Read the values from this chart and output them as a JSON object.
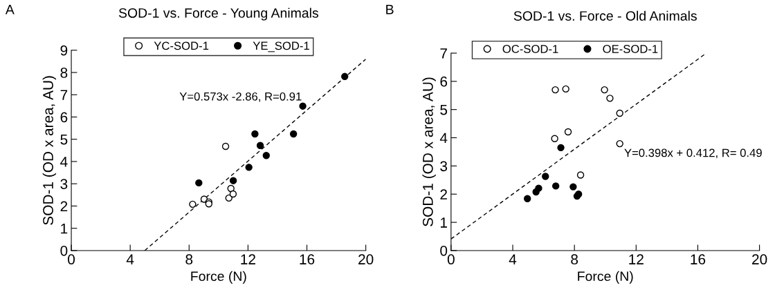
{
  "chart_data": [
    {
      "type": "scatter",
      "title": "SOD-1 vs. Force - Young Animals",
      "xlabel": "Force (N)",
      "ylabel": "SOD-1 (OD x area, AU)",
      "xlim": [
        0,
        20
      ],
      "xticks": [
        0,
        4,
        8,
        12,
        16,
        20
      ],
      "ylim": [
        0,
        9
      ],
      "yticks": [
        0,
        1,
        2,
        3,
        4,
        5,
        6,
        7,
        8,
        9
      ],
      "legend": "top",
      "marker": "circle",
      "grid": false,
      "annotations": [
        "A",
        "Y=0.573x -2.86, R=0.91"
      ],
      "series": [
        {
          "name": "YC-SOD-1",
          "color": "#ffffff",
          "x": [
            8.24,
            9.02,
            9.34,
            9.34,
            10.48,
            10.7,
            10.84,
            10.99
          ],
          "values": [
            2.08,
            2.31,
            2.18,
            2.1,
            4.68,
            2.36,
            2.79,
            2.54
          ]
        },
        {
          "name": "YE_SOD-1",
          "color": "#000000",
          "x": [
            8.66,
            11.0,
            12.06,
            12.47,
            12.83,
            13.24,
            15.09,
            15.72,
            18.57
          ],
          "values": [
            3.04,
            3.14,
            3.74,
            5.24,
            4.72,
            4.27,
            5.24,
            6.49,
            7.82
          ]
        },
        {
          "type": "line",
          "marker": "none",
          "color": "#000000",
          "line_style": "dashed",
          "x": [
            4.99,
            20
          ],
          "values": [
            0,
            8.6
          ]
        }
      ]
    },
    {
      "type": "scatter",
      "title": "SOD-1 vs. Force - Old Animals",
      "xlabel": "Force (N)",
      "ylabel": "SOD-1 (OD x area, AU)",
      "xlim": [
        0,
        20
      ],
      "xticks": [
        0,
        4,
        8,
        12,
        16,
        20
      ],
      "ylim": [
        0,
        7
      ],
      "yticks": [
        0,
        1,
        2,
        3,
        4,
        5,
        6,
        7
      ],
      "legend": "top left",
      "marker": "circle",
      "grid": false,
      "annotations": [
        "B",
        "Y=0.398x + 0.412, R= 0.49"
      ],
      "series": [
        {
          "name": "OC-SOD-1",
          "color": "#ffffff",
          "x": [
            6.76,
            7.44,
            9.95,
            10.3,
            10.94,
            7.59,
            6.72,
            10.94,
            8.4
          ],
          "values": [
            5.7,
            5.73,
            5.7,
            5.4,
            4.87,
            4.21,
            3.97,
            3.79,
            2.68
          ]
        },
        {
          "name": "OE-SOD-1",
          "color": "#000000",
          "x": [
            7.12,
            6.12,
            6.79,
            7.92,
            5.68,
            5.51,
            4.95,
            8.27,
            8.17
          ],
          "values": [
            3.65,
            2.63,
            2.29,
            2.26,
            2.21,
            2.08,
            1.84,
            2.0,
            1.93
          ]
        },
        {
          "type": "line",
          "marker": "none",
          "color": "#000000",
          "line_style": "dashed",
          "x": [
            0,
            16.5
          ],
          "values": [
            0.41,
            6.98
          ]
        }
      ]
    }
  ]
}
